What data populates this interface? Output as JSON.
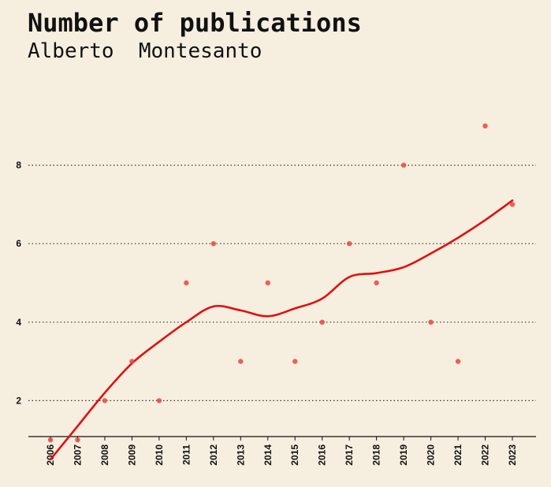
{
  "chart_data": {
    "type": "scatter",
    "title": "Number of publications",
    "subtitle": "Alberto  Montesanto",
    "xlabel": "",
    "ylabel": "",
    "categories": [
      "2006",
      "2007",
      "2008",
      "2009",
      "2010",
      "2011",
      "2012",
      "2013",
      "2014",
      "2015",
      "2016",
      "2017",
      "2018",
      "2019",
      "2020",
      "2021",
      "2022",
      "2023"
    ],
    "values": [
      1,
      1,
      2,
      3,
      2,
      5,
      6,
      3,
      5,
      3,
      4,
      6,
      5,
      8,
      4,
      3,
      9,
      7
    ],
    "smooth_trend": [
      0.5,
      1.35,
      2.2,
      2.95,
      3.5,
      4.0,
      4.4,
      4.3,
      4.15,
      4.35,
      4.6,
      5.15,
      5.25,
      5.4,
      5.75,
      6.15,
      6.6,
      7.1
    ],
    "yticks": [
      2,
      4,
      6,
      8
    ],
    "ylim": [
      0.5,
      9.5
    ],
    "grid": "horizontal dotted",
    "legend": "none",
    "colors": {
      "background": "#f6eedf",
      "points": "#e8463f",
      "trend": "#e01010",
      "grid": "#333333",
      "axis": "#111111"
    }
  }
}
